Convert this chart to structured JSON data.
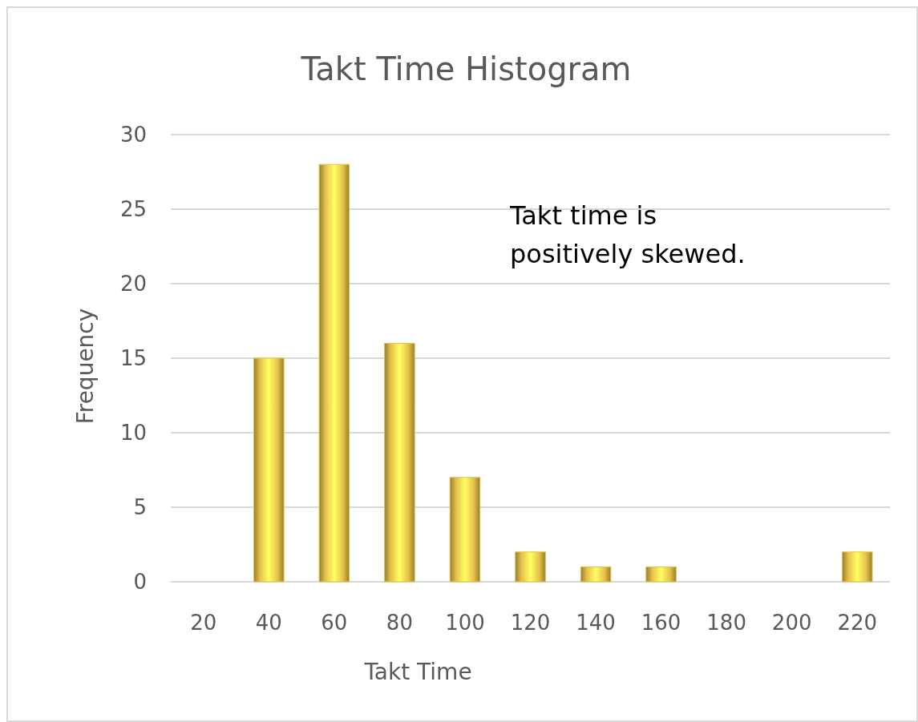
{
  "chart_data": {
    "type": "bar",
    "title": "Takt Time Histogram",
    "xlabel": "Takt Time",
    "ylabel": "Frequency",
    "categories": [
      "20",
      "40",
      "60",
      "80",
      "100",
      "120",
      "140",
      "160",
      "180",
      "200",
      "220"
    ],
    "values": [
      0,
      15,
      28,
      16,
      7,
      2,
      1,
      1,
      0,
      0,
      2
    ],
    "color": "#e3c04a",
    "ylim": [
      0,
      30
    ],
    "yticks": [
      0,
      5,
      10,
      15,
      20,
      25,
      30
    ],
    "grid": "y",
    "annotations": [
      "Takt time is positively skewed."
    ]
  }
}
